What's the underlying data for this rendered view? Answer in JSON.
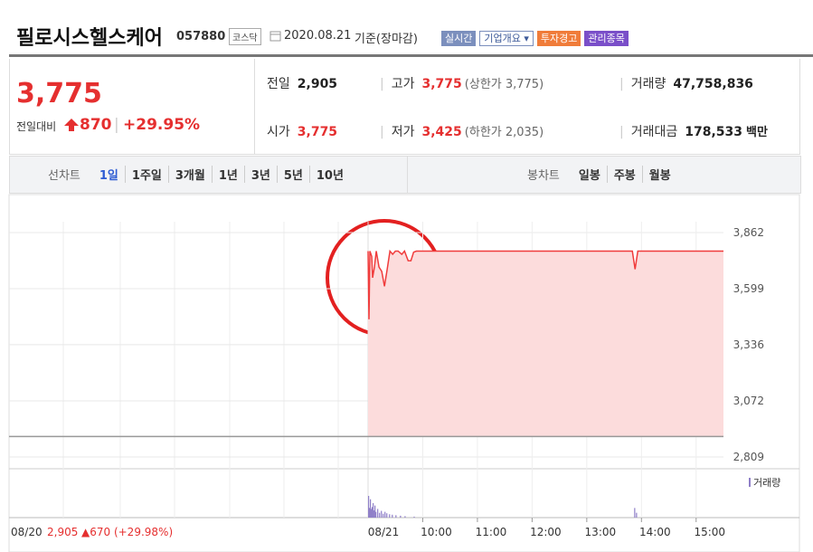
{
  "header": {
    "name": "필로시스헬스케어",
    "code": "057880",
    "market": "코스닥",
    "date": "2020.08.21",
    "status": "기준(장마감)",
    "buttons": [
      "실시간",
      "기업개요",
      "투자경고",
      "관리종목"
    ]
  },
  "quote": {
    "price": "3,775",
    "change_label": "전일대비",
    "change": "870",
    "rate": "+29.95%"
  },
  "stats": [
    {
      "label": "전일",
      "value": "2,905"
    },
    {
      "label": "고가",
      "value": "3,775",
      "note": "(상한가 3,775)"
    },
    {
      "label": "거래량",
      "value": "47,758,836"
    },
    {
      "label": "시가",
      "value": "3,775"
    },
    {
      "label": "저가",
      "value": "3,425",
      "note": "(하한가 2,035)"
    },
    {
      "label": "거래대금",
      "value": "178,533",
      "unit": "백만"
    }
  ],
  "tabs": {
    "line_label": "선차트",
    "line_items": [
      "1일",
      "1주일",
      "3개월",
      "1년",
      "3년",
      "5년",
      "10년"
    ],
    "candle_label": "봉차트",
    "candle_items": [
      "일봉",
      "주봉",
      "월봉"
    ]
  },
  "chart_data": {
    "type": "line",
    "color": "#f03c3c",
    "fill": "#fcdcdc",
    "baseline": 2905,
    "ylim": [
      2809,
      3862
    ],
    "yticks": [
      {
        "value": 3862,
        "label": "3,862"
      },
      {
        "value": 3599,
        "label": "3,599"
      },
      {
        "value": 3336,
        "label": "3,336"
      },
      {
        "value": 3072,
        "label": "3,072"
      },
      {
        "value": 2809,
        "label": "2,809"
      }
    ],
    "xlim": [
      "09:00",
      "15:30"
    ],
    "xticks": [
      "10:00",
      "11:00",
      "12:00",
      "13:00",
      "14:00",
      "15:00"
    ],
    "prev_day_label": "08/20",
    "prev_day_close": "2,905",
    "prev_day_change": "▲670 (+29.98%)",
    "day_label": "08/21",
    "x": [
      "09:00",
      "09:01",
      "09:02",
      "09:04",
      "09:05",
      "09:07",
      "09:09",
      "09:12",
      "09:15",
      "09:18",
      "09:21",
      "09:24",
      "09:27",
      "09:30",
      "09:33",
      "09:37",
      "09:40",
      "09:44",
      "09:47",
      "09:50",
      "09:53",
      "09:58",
      "13:50",
      "13:53",
      "13:56",
      "15:30"
    ],
    "values": [
      3775,
      3455,
      3775,
      3750,
      3650,
      3700,
      3775,
      3700,
      3680,
      3610,
      3690,
      3775,
      3760,
      3775,
      3775,
      3760,
      3775,
      3730,
      3730,
      3770,
      3775,
      3775,
      3775,
      3690,
      3775,
      3775
    ],
    "volume": {
      "name": "거래량",
      "color": "#8f7fc8",
      "x": [
        "09:00",
        "09:01",
        "09:02",
        "09:03",
        "09:04",
        "09:05",
        "09:06",
        "09:07",
        "09:08",
        "09:10",
        "09:12",
        "09:14",
        "09:16",
        "09:18",
        "09:20",
        "09:23",
        "09:26",
        "09:30",
        "09:35",
        "09:40",
        "09:50",
        "13:52",
        "13:54"
      ],
      "values": [
        45,
        20,
        38,
        18,
        22,
        30,
        15,
        25,
        12,
        18,
        10,
        14,
        8,
        12,
        9,
        7,
        6,
        5,
        4,
        3,
        2,
        20,
        10
      ]
    }
  }
}
